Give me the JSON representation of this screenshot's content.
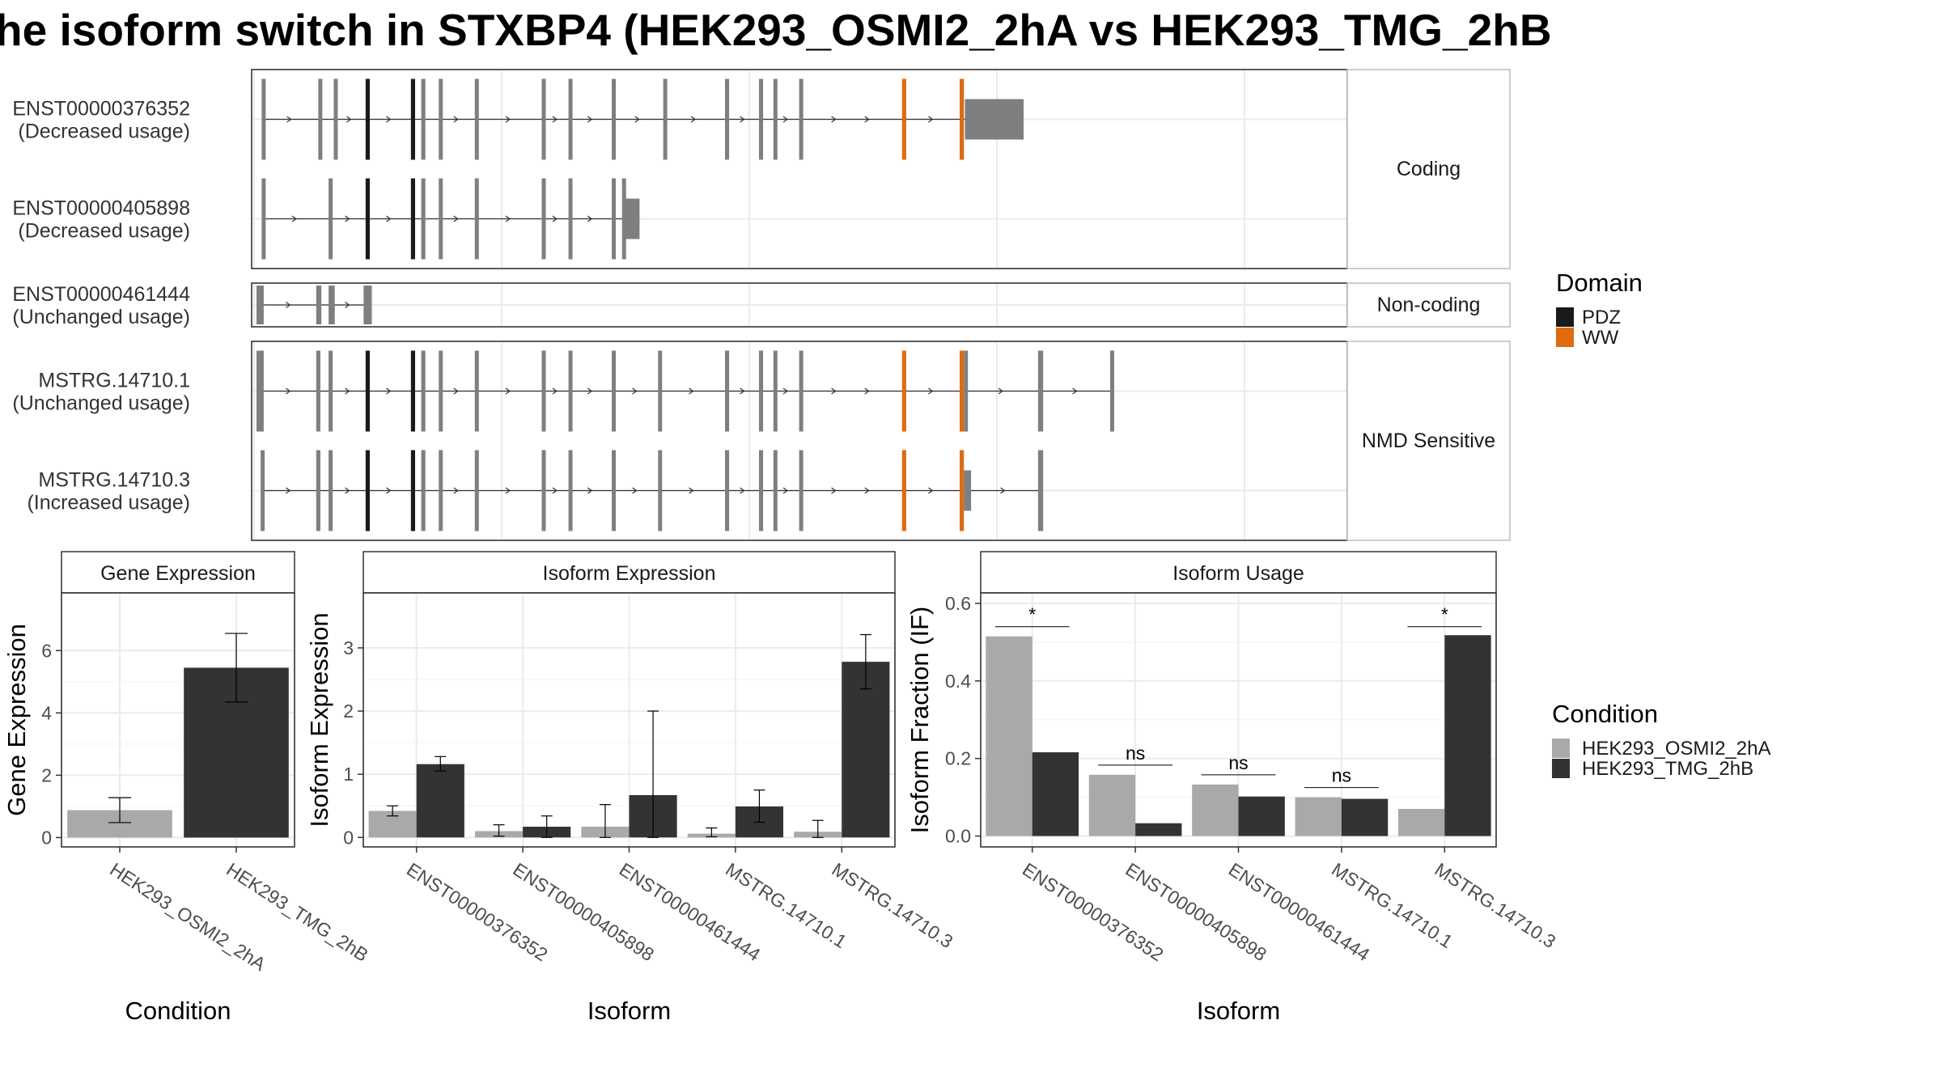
{
  "title": "he isoform switch in STXBP4 (HEK293_OSMI2_2hA vs HEK293_TMG_2hB",
  "colors": {
    "exon": "#7f7f7f",
    "pdz": "#1a1a1a",
    "ww": "#e06a10",
    "cond1": "#a9a9a9",
    "cond2": "#333333",
    "grid": "#ebebeb",
    "panel_border": "#333333"
  },
  "transcript_panels": [
    {
      "strip": "Coding",
      "rows": [
        {
          "id": "ENST00000376352",
          "usage": "(Decreased usage)",
          "start": 5,
          "end": 745,
          "exons": [
            [
              5,
              7
            ],
            [
              60,
              62
            ],
            [
              75,
              77
            ],
            [
              106,
              110
            ],
            [
              150,
              154
            ],
            [
              160,
              164
            ],
            [
              177,
              179
            ],
            [
              212,
              215
            ],
            [
              277,
              280
            ],
            [
              303,
              306
            ],
            [
              345,
              348
            ],
            [
              395,
              397
            ],
            [
              455,
              459
            ],
            [
              488,
              492
            ],
            [
              502,
              504
            ],
            [
              527,
              530
            ],
            [
              627,
              630
            ],
            [
              683,
              687
            ],
            [
              688,
              745
            ]
          ],
          "domains": [
            {
              "type": "PDZ",
              "pos": [
                106,
                110
              ]
            },
            {
              "type": "PDZ",
              "pos": [
                150,
                154
              ]
            },
            {
              "type": "WW",
              "pos": [
                627,
                630
              ]
            },
            {
              "type": "WW",
              "pos": [
                683,
                686
              ]
            }
          ],
          "utr3": [
            688,
            745
          ]
        },
        {
          "id": "ENST00000405898",
          "usage": "(Decreased usage)",
          "start": 5,
          "end": 372,
          "exons": [
            [
              5,
              7
            ],
            [
              70,
              74
            ],
            [
              106,
              110
            ],
            [
              150,
              154
            ],
            [
              160,
              164
            ],
            [
              177,
              179
            ],
            [
              212,
              215
            ],
            [
              277,
              280
            ],
            [
              303,
              306
            ],
            [
              345,
              348
            ],
            [
              355,
              357
            ],
            [
              358,
              372
            ]
          ],
          "domains": [
            {
              "type": "PDZ",
              "pos": [
                106,
                110
              ]
            },
            {
              "type": "PDZ",
              "pos": [
                150,
                154
              ]
            }
          ],
          "utr3": [
            358,
            372
          ]
        }
      ]
    },
    {
      "strip": "Non-coding",
      "rows": [
        {
          "id": "ENST00000461444",
          "usage": "(Unchanged usage)",
          "start": 0,
          "end": 112,
          "exons": [
            [
              0,
              7
            ],
            [
              58,
              63
            ],
            [
              70,
              76
            ],
            [
              104,
              112
            ]
          ],
          "domains": []
        }
      ]
    },
    {
      "strip": "NMD Sensitive",
      "rows": [
        {
          "id": "MSTRG.14710.1",
          "usage": "(Unchanged usage)",
          "start": 0,
          "end": 833,
          "exons": [
            [
              0,
              7
            ],
            [
              58,
              62
            ],
            [
              70,
              74
            ],
            [
              106,
              110
            ],
            [
              150,
              154
            ],
            [
              160,
              164
            ],
            [
              177,
              179
            ],
            [
              212,
              215
            ],
            [
              277,
              280
            ],
            [
              303,
              306
            ],
            [
              345,
              348
            ],
            [
              390,
              393
            ],
            [
              455,
              459
            ],
            [
              488,
              492
            ],
            [
              502,
              504
            ],
            [
              527,
              530
            ],
            [
              627,
              630
            ],
            [
              683,
              686
            ],
            [
              687,
              690
            ],
            [
              759,
              764
            ],
            [
              829,
              833
            ]
          ],
          "domains": [
            {
              "type": "PDZ",
              "pos": [
                106,
                110
              ]
            },
            {
              "type": "PDZ",
              "pos": [
                150,
                154
              ]
            },
            {
              "type": "WW",
              "pos": [
                627,
                630
              ]
            },
            {
              "type": "WW",
              "pos": [
                683,
                686
              ]
            }
          ]
        },
        {
          "id": "MSTRG.14710.3",
          "usage": "(Increased usage)",
          "start": 4,
          "end": 764,
          "exons": [
            [
              4,
              7
            ],
            [
              58,
              62
            ],
            [
              70,
              74
            ],
            [
              106,
              110
            ],
            [
              150,
              154
            ],
            [
              160,
              164
            ],
            [
              177,
              179
            ],
            [
              212,
              215
            ],
            [
              277,
              280
            ],
            [
              303,
              306
            ],
            [
              345,
              348
            ],
            [
              390,
              393
            ],
            [
              455,
              459
            ],
            [
              488,
              492
            ],
            [
              502,
              504
            ],
            [
              527,
              530
            ],
            [
              627,
              630
            ],
            [
              683,
              686
            ],
            [
              687,
              694
            ],
            [
              759,
              764
            ]
          ],
          "domains": [
            {
              "type": "PDZ",
              "pos": [
                106,
                110
              ]
            },
            {
              "type": "PDZ",
              "pos": [
                150,
                154
              ]
            },
            {
              "type": "WW",
              "pos": [
                627,
                630
              ]
            },
            {
              "type": "WW",
              "pos": [
                683,
                686
              ]
            }
          ],
          "utr3": [
            687,
            694
          ]
        }
      ]
    }
  ],
  "domain_legend": {
    "title": "Domain",
    "items": [
      {
        "label": "PDZ",
        "color": "#1a1a1a"
      },
      {
        "label": "WW",
        "color": "#e06a10"
      }
    ]
  },
  "condition_legend": {
    "title": "Condition",
    "items": [
      {
        "label": "HEK293_OSMI2_2hA",
        "color": "#a9a9a9"
      },
      {
        "label": "HEK293_TMG_2hB",
        "color": "#333333"
      }
    ]
  },
  "chart_data": [
    {
      "type": "bar",
      "strip": "Gene Expression",
      "xlabel": "Condition",
      "ylabel": "Gene Expression",
      "categories": [
        "HEK293_OSMI2_2hA",
        "HEK293_TMG_2hB"
      ],
      "values": [
        0.88,
        5.45
      ],
      "error_low": [
        0.48,
        4.35
      ],
      "error_high": [
        1.28,
        6.55
      ],
      "colors": [
        "#a9a9a9",
        "#333333"
      ],
      "ylim": [
        -0.3,
        7.85
      ],
      "yticks": [
        0,
        2,
        4,
        6
      ]
    },
    {
      "type": "bar",
      "strip": "Isoform Expression",
      "xlabel": "Isoform",
      "ylabel": "Isoform Expression",
      "categories": [
        "ENST00000376352",
        "ENST00000405898",
        "ENST00000461444",
        "MSTRG.14710.1",
        "MSTRG.14710.3"
      ],
      "series": [
        {
          "name": "HEK293_OSMI2_2hA",
          "values": [
            0.42,
            0.1,
            0.17,
            0.06,
            0.09
          ],
          "error_low": [
            0.34,
            0.02,
            0.0,
            0.01,
            0.0
          ],
          "error_high": [
            0.5,
            0.2,
            0.52,
            0.15,
            0.27
          ]
        },
        {
          "name": "HEK293_TMG_2hB",
          "values": [
            1.16,
            0.17,
            0.67,
            0.49,
            2.78
          ],
          "error_low": [
            1.05,
            0.0,
            0.0,
            0.24,
            2.35
          ],
          "error_high": [
            1.28,
            0.34,
            2.0,
            0.75,
            3.21
          ]
        }
      ],
      "ylim": [
        -0.15,
        3.87
      ],
      "yticks": [
        0,
        1,
        2,
        3
      ]
    },
    {
      "type": "bar",
      "strip": "Isoform Usage",
      "xlabel": "Isoform",
      "ylabel": "Isoform Fraction (IF)",
      "categories": [
        "ENST00000376352",
        "ENST00000405898",
        "ENST00000461444",
        "MSTRG.14710.1",
        "MSTRG.14710.3"
      ],
      "series": [
        {
          "name": "HEK293_OSMI2_2hA",
          "values": [
            0.515,
            0.158,
            0.133,
            0.1,
            0.07
          ]
        },
        {
          "name": "HEK293_TMG_2hB",
          "values": [
            0.216,
            0.033,
            0.102,
            0.096,
            0.518
          ]
        }
      ],
      "significance": [
        {
          "label": "*",
          "y": 0.54
        },
        {
          "label": "ns",
          "y": 0.183
        },
        {
          "label": "ns",
          "y": 0.158
        },
        {
          "label": "ns",
          "y": 0.125
        },
        {
          "label": "*",
          "y": 0.54
        }
      ],
      "ylim": [
        -0.028,
        0.627
      ],
      "yticks": [
        0.0,
        0.2,
        0.4,
        0.6
      ],
      "ytick_labels": [
        "0.0",
        "0.2",
        "0.4",
        "0.6"
      ]
    }
  ]
}
